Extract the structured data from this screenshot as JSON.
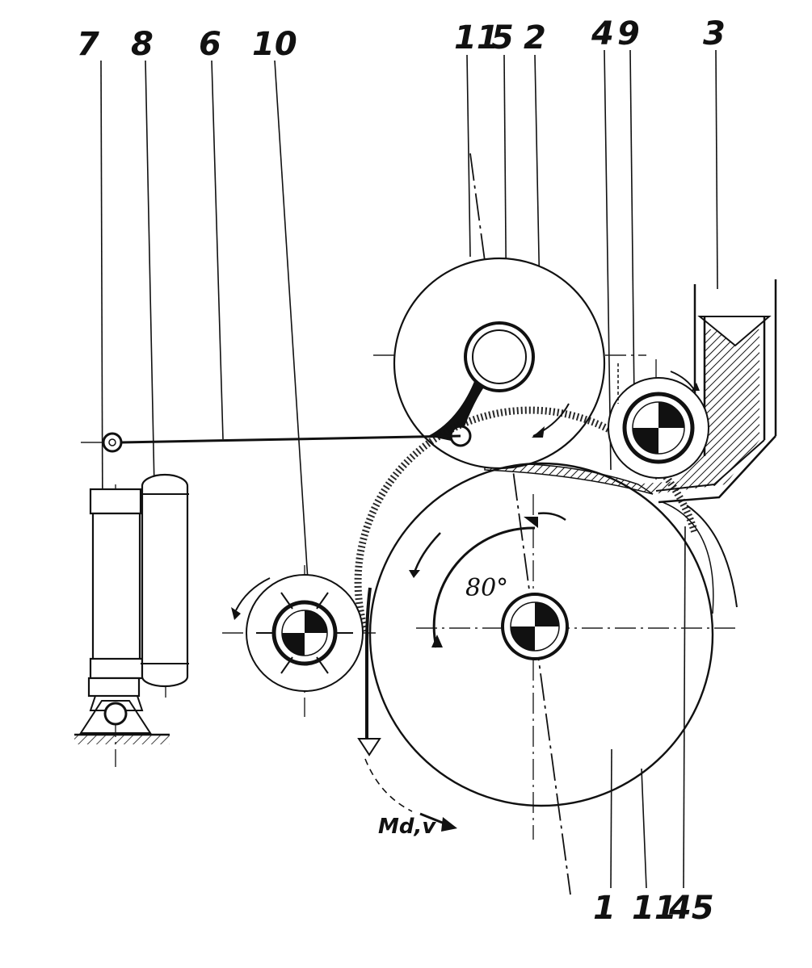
{
  "reference_numerals": {
    "top": [
      "7",
      "8",
      "6",
      "10",
      "11",
      "5",
      "2",
      "4",
      "9",
      "3"
    ],
    "bottom": [
      "1",
      "11",
      "45"
    ]
  },
  "annotations": {
    "angle": "80°",
    "torque_speed": "Md,v"
  },
  "colors": {
    "ink": "#111111",
    "paper": "#ffffff"
  }
}
